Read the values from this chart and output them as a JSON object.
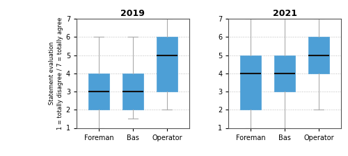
{
  "title_2019": "2019",
  "title_2021": "2021",
  "ylabel": "Statement evaluation\n1 = totally disagree / 7 = totally agree",
  "categories": [
    "Foreman",
    "Bas",
    "Operator"
  ],
  "box_color": "#4d9fd6",
  "median_color": "#111111",
  "whisker_color": "#aaaaaa",
  "cap_color": "#aaaaaa",
  "ylim": [
    1,
    7
  ],
  "yticks": [
    1,
    2,
    3,
    4,
    5,
    6,
    7
  ],
  "data_2019": {
    "Foreman": {
      "whislo": 1.0,
      "q1": 2.0,
      "med": 3.0,
      "q3": 4.0,
      "whishi": 6.0
    },
    "Bas": {
      "whislo": 1.5,
      "q1": 2.0,
      "med": 3.0,
      "q3": 4.0,
      "whishi": 6.0
    },
    "Operator": {
      "whislo": 2.0,
      "q1": 3.0,
      "med": 5.0,
      "q3": 6.0,
      "whishi": 7.0
    }
  },
  "data_2021": {
    "Foreman": {
      "whislo": 1.0,
      "q1": 2.0,
      "med": 4.0,
      "q3": 5.0,
      "whishi": 7.0
    },
    "Bas": {
      "whislo": 1.0,
      "q1": 3.0,
      "med": 4.0,
      "q3": 5.0,
      "whishi": 7.0
    },
    "Operator": {
      "whislo": 2.0,
      "q1": 4.0,
      "med": 5.0,
      "q3": 6.0,
      "whishi": 7.0
    }
  }
}
